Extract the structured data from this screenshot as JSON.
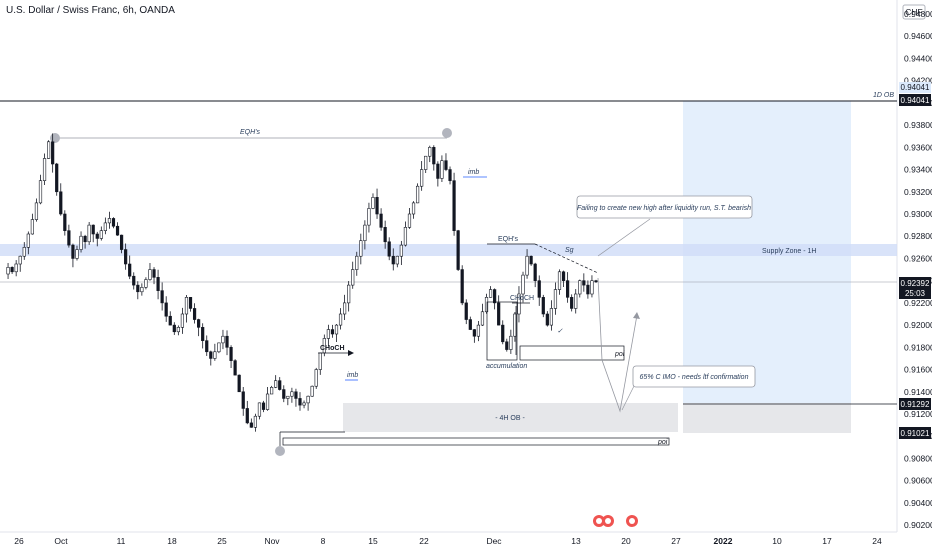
{
  "header": {
    "title": "U.S. Dollar / Swiss Franc, 6h, OANDA"
  },
  "currency_badge": "CHF",
  "price_labels": {
    "ob_1d_label": "1D OB",
    "ob_1d_price": "0.94041",
    "ob_1d_price_faded": "0.94041",
    "last_price": "0.92392",
    "countdown": "25:03",
    "target_price": "0.91292",
    "stop_price": "0.91021"
  },
  "annotations": {
    "eqh_top": "EQH's",
    "eqh_dec": "EQH's",
    "sg": "Sg",
    "imb_top": "imb",
    "imb_nov": "imb",
    "choch_nov": "CHoCH",
    "choch_dec": "CHoCH",
    "accumulation": "accumulation",
    "supply_zone": "Supply Zone - 1H",
    "ob_4h": "- 4H OB -",
    "poi_right": "poi",
    "poi_bottom": "poi",
    "nov_x": "x",
    "check_mark": "✓",
    "note_bearish": "Failing to create new high after liquidity run, S.T. bearish",
    "note_imo": "65% C IMO - needs ltf confirmation"
  },
  "chart_data": {
    "type": "candlestick",
    "symbol": "U.S. Dollar / Swiss Franc",
    "timeframe": "6h",
    "source": "OANDA",
    "currency": "CHF",
    "x_ticks": [
      "26",
      "Oct",
      "11",
      "18",
      "25",
      "Nov",
      "8",
      "15",
      "22",
      "Dec",
      "13",
      "20",
      "27",
      "2022",
      "10",
      "17",
      "24"
    ],
    "y_ticks": [
      "0.94800",
      "0.94600",
      "0.94400",
      "0.94200",
      "0.94000",
      "0.93800",
      "0.93600",
      "0.93400",
      "0.93200",
      "0.93000",
      "0.92800",
      "0.92600",
      "0.92400",
      "0.92200",
      "0.92000",
      "0.91800",
      "0.91600",
      "0.91400",
      "0.91200",
      "0.91000",
      "0.90800",
      "0.90600",
      "0.90400",
      "0.90200"
    ],
    "ylim": [
      0.902,
      0.948
    ],
    "last_price": 0.92392,
    "levels": {
      "ob_1d": 0.94041,
      "target": 0.91292,
      "stop": 0.91021
    },
    "zones": {
      "supply_zone_1h": [
        0.9262,
        0.9275
      ],
      "ob_4h": [
        0.9102,
        0.913
      ]
    },
    "path": [
      0.9246,
      0.9252,
      0.9248,
      0.9255,
      0.9262,
      0.927,
      0.9282,
      0.9295,
      0.931,
      0.933,
      0.935,
      0.9365,
      0.9345,
      0.932,
      0.93,
      0.9285,
      0.9272,
      0.926,
      0.9268,
      0.928,
      0.9275,
      0.929,
      0.9282,
      0.9278,
      0.9285,
      0.9292,
      0.9296,
      0.9289,
      0.9281,
      0.9268,
      0.9255,
      0.9244,
      0.9236,
      0.923,
      0.9234,
      0.9241,
      0.925,
      0.9243,
      0.9231,
      0.922,
      0.9208,
      0.92,
      0.9194,
      0.9198,
      0.921,
      0.9225,
      0.9215,
      0.9205,
      0.9198,
      0.9186,
      0.9176,
      0.917,
      0.9176,
      0.9184,
      0.919,
      0.918,
      0.9168,
      0.9155,
      0.914,
      0.9125,
      0.9112,
      0.9108,
      0.9118,
      0.913,
      0.9124,
      0.9138,
      0.9144,
      0.915,
      0.9142,
      0.9134,
      0.9136,
      0.914,
      0.9134,
      0.9128,
      0.913,
      0.9136,
      0.9145,
      0.916,
      0.9175,
      0.9188,
      0.9196,
      0.9192,
      0.92,
      0.921,
      0.922,
      0.9236,
      0.925,
      0.9262,
      0.9276,
      0.929,
      0.9305,
      0.9315,
      0.93,
      0.9288,
      0.9275,
      0.9262,
      0.9255,
      0.9262,
      0.9272,
      0.9288,
      0.93,
      0.931,
      0.9325,
      0.934,
      0.9352,
      0.936,
      0.9345,
      0.9332,
      0.9348,
      0.934,
      0.933,
      0.9285,
      0.925,
      0.922,
      0.9205,
      0.9196,
      0.919,
      0.92,
      0.9212,
      0.9225,
      0.9232,
      0.922,
      0.92,
      0.9185,
      0.9178,
      0.919,
      0.921,
      0.9228,
      0.9245,
      0.9262,
      0.9255,
      0.924,
      0.9225,
      0.921,
      0.92,
      0.9215,
      0.9232,
      0.9248,
      0.924,
      0.9225,
      0.9215,
      0.9228,
      0.924,
      0.9236,
      0.9228,
      0.924,
      0.9239
    ]
  }
}
